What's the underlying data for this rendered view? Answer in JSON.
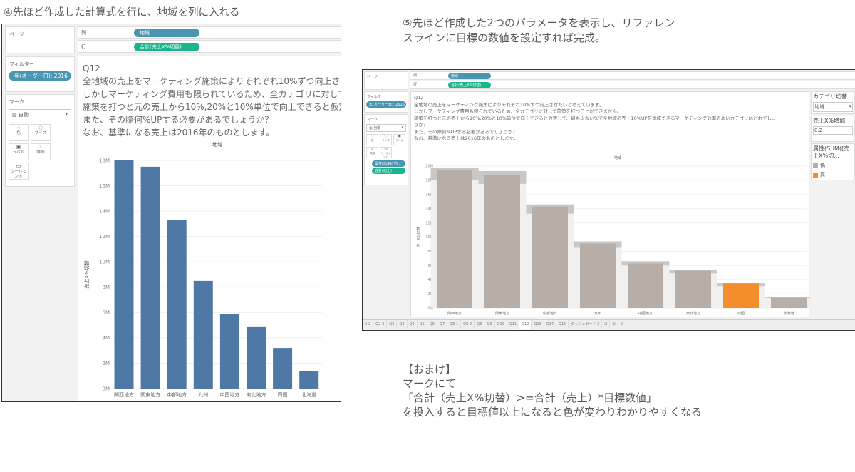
{
  "captions": {
    "step4": "④先ほど作成した計算式を行に、地域を列に入れる",
    "step5_line1": "⑤先ほど作成した2つのパラメータを表示し、リファレン",
    "step5_line2": "スラインに目標の数値を設定すれば完成。"
  },
  "bonus": [
    "【おまけ】",
    "マークにて",
    "「合計（売上X%切替）>=合計（売上）*目標数値」",
    "を投入すると目標値以上になると色が変わりわかりやすくなる"
  ],
  "tableau": {
    "pages_label": "ページ",
    "columns_label": "列",
    "rows_label": "行",
    "columns_pill": "地域",
    "rows_pill": "合計(売上X%切替)",
    "filters_label": "フィルター",
    "filter_pill": "年(オーダー日): 2016",
    "marks_label": "マーク",
    "mark_type": "自動",
    "mark_buttons": [
      "色",
      "サイズ",
      "ラベル",
      "詳細",
      "ツールヒント"
    ],
    "mark_pills": [
      "属性(SUM([売...",
      "合計(売上)"
    ],
    "question": [
      "Q12",
      "全地域の売上をマーケティング施策によりそれぞれ10%ずつ向上させたいと考えています。",
      "しかしマーケティング費用も限られているため、全カテゴリに対して施策を打つことができません。",
      "施策を打つと元の売上から10%,20%と10%単位で向上できると仮定して、最も少ない%で全地域の売上10%UPを達成できるマーケティング効率のよいカテゴリはどれでしょ",
      "うか？",
      "また、その際何%UPする必要があるでしょうか？",
      "なお、基準になる売上は2016年のものとします。"
    ],
    "param1_label": "カテゴリ切替",
    "param1_value": "地域",
    "param2_label": "売上X%増加",
    "param2_value": "0.2",
    "legend_title": "属性(SUM([売上X%切...",
    "legend": [
      {
        "label": "偽",
        "color": "#b8aea8"
      },
      {
        "label": "真",
        "color": "#f28e2b"
      }
    ],
    "sheet_tabs": [
      "2-2",
      "Q2-3",
      "Q2",
      "Q3",
      "Q4",
      "Q5",
      "Q6",
      "Q7",
      "Q8-1",
      "Q8-2",
      "Q8",
      "Q9",
      "Q10",
      "Q11",
      "Q12",
      "Q13",
      "Q14",
      "Q15",
      "ダッシュボード 3"
    ],
    "active_tab": "Q12"
  },
  "chart_data": [
    {
      "type": "bar",
      "title": "地域",
      "xlabel": "",
      "ylabel": "売上X%切替",
      "categories": [
        "関西地方",
        "関東地方",
        "中部地方",
        "九州",
        "中国地方",
        "東北地方",
        "四国",
        "北海道"
      ],
      "values": [
        18.0,
        17.5,
        13.3,
        8.5,
        5.9,
        4.9,
        3.2,
        1.4
      ],
      "unit": "M",
      "ylim": [
        0,
        18
      ],
      "yticks": [
        "0M",
        "2M",
        "4M",
        "6M",
        "8M",
        "10M",
        "12M",
        "14M",
        "16M",
        "18M"
      ],
      "color": "#4e79a7",
      "grid": true
    },
    {
      "type": "bar",
      "title": "地域",
      "xlabel": "",
      "ylabel": "売上X%切替",
      "categories": [
        "関西地方",
        "関東地方",
        "中部地方",
        "九州",
        "中国地方",
        "東北地方",
        "四国",
        "北海道"
      ],
      "values": [
        19.5,
        18.7,
        14.3,
        9.1,
        6.3,
        5.3,
        3.5,
        1.45
      ],
      "reference_band": [
        [
          18.0,
          19.8
        ],
        [
          17.5,
          19.3
        ],
        [
          13.3,
          14.6
        ],
        [
          8.5,
          9.4
        ],
        [
          6.0,
          6.6
        ],
        [
          4.9,
          5.4
        ],
        [
          3.1,
          3.5
        ],
        [
          1.4,
          1.55
        ]
      ],
      "highlight": [
        false,
        false,
        false,
        false,
        false,
        false,
        true,
        false
      ],
      "unit": "M",
      "ylim": [
        0,
        20
      ],
      "yticks": [
        "0M",
        "2M",
        "4M",
        "6M",
        "8M",
        "10M",
        "12M",
        "14M",
        "16M",
        "18M",
        "20M"
      ],
      "color": "#b8aea8",
      "highlight_color": "#f28e2b",
      "grid": true
    }
  ]
}
